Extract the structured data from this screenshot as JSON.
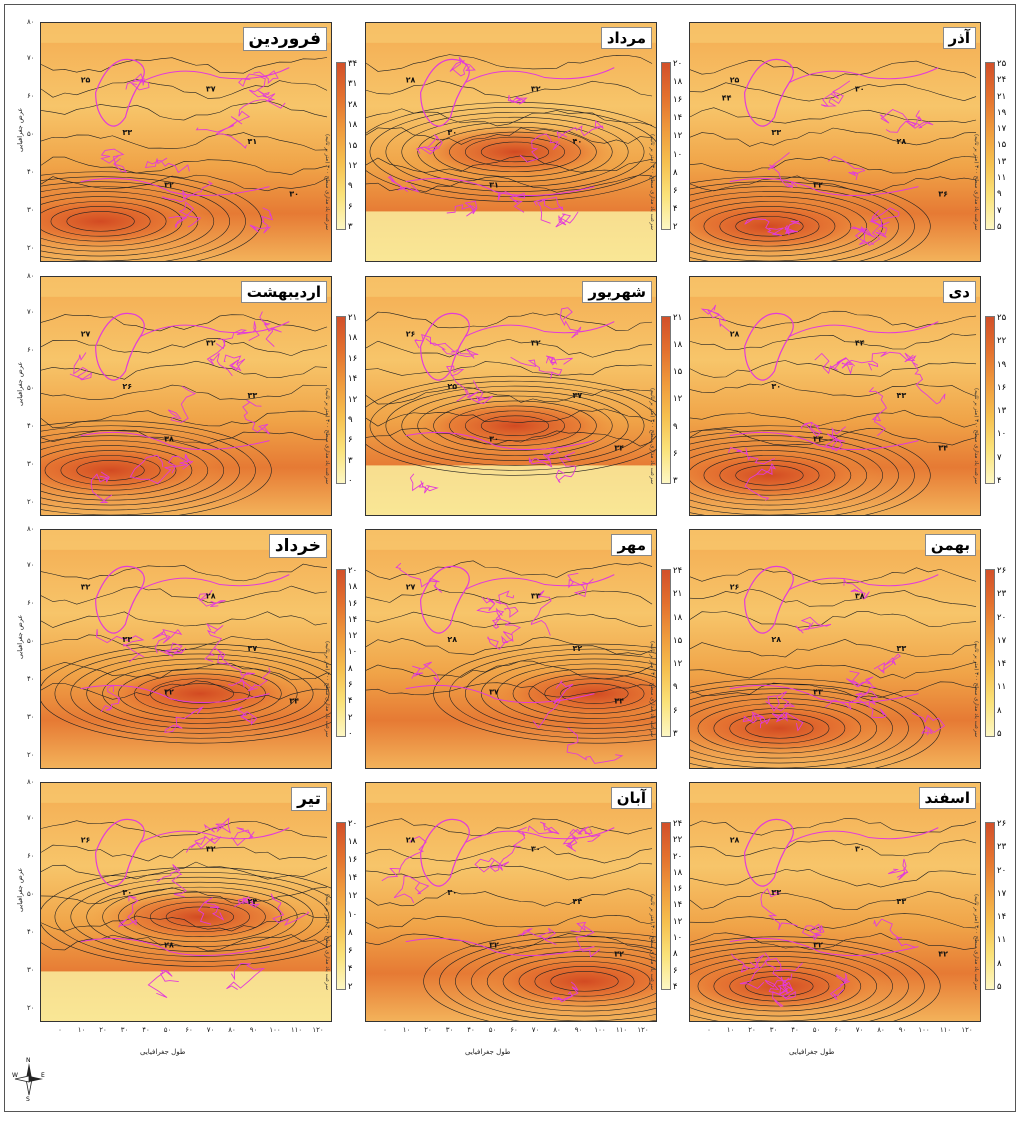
{
  "panels": [
    {
      "month": "فروردین",
      "ticks": [
        "۳۴",
        "۳۱",
        "۲۸",
        "۱۸",
        "۱۵",
        "۱۲",
        "۹",
        "۶",
        "۳"
      ],
      "labels": [
        "۲۵",
        "۳۳",
        "۳۲",
        "۳۷",
        "۳۱",
        "۳۰"
      ]
    },
    {
      "month": "مرداد",
      "ticks": [
        "۲۰",
        "۱۸",
        "۱۶",
        "۱۴",
        "۱۲",
        "۱۰",
        "۸",
        "۶",
        "۴",
        "۲"
      ],
      "labels": [
        "۲۸",
        "۳۰",
        "۳۱",
        "۳۲",
        "۴۰"
      ]
    },
    {
      "month": "آذر",
      "ticks": [
        "۲۵",
        "۲۴",
        "۲۱",
        "۱۹",
        "۱۷",
        "۱۵",
        "۱۳",
        "۱۱",
        "۹",
        "۷",
        "۵"
      ],
      "labels": [
        "۲۵",
        "۳۳",
        "۳۲",
        "۳۰",
        "۲۸",
        "۳۶",
        "۴۴"
      ]
    },
    {
      "month": "اردیبهشت",
      "ticks": [
        "۲۱",
        "۱۸",
        "۱۶",
        "۱۴",
        "۱۲",
        "۹",
        "۶",
        "۳",
        "۰"
      ],
      "labels": [
        "۲۷",
        "۲۶",
        "۳۸",
        "۳۲",
        "۳۳"
      ]
    },
    {
      "month": "شهریور",
      "ticks": [
        "۲۱",
        "۱۸",
        "۱۵",
        "۱۲",
        "۹",
        "۶",
        "۳"
      ],
      "labels": [
        "۲۶",
        "۲۵",
        "۳۰",
        "۳۲",
        "۳۷",
        "۳۴"
      ]
    },
    {
      "month": "دی",
      "ticks": [
        "۲۵",
        "۲۲",
        "۱۹",
        "۱۶",
        "۱۳",
        "۱۰",
        "۷",
        "۴"
      ],
      "labels": [
        "۲۸",
        "۳۰",
        "۴۳",
        "۴۴",
        "۴۳",
        "۳۴"
      ]
    },
    {
      "month": "خرداد",
      "ticks": [
        "۲۰",
        "۱۸",
        "۱۶",
        "۱۴",
        "۱۲",
        "۱۰",
        "۸",
        "۶",
        "۴",
        "۲",
        "۰"
      ],
      "labels": [
        "۳۲",
        "۳۳",
        "۳۲",
        "۲۸",
        "۳۷",
        "۳۴"
      ]
    },
    {
      "month": "مهر",
      "ticks": [
        "۲۴",
        "۲۱",
        "۱۸",
        "۱۵",
        "۱۲",
        "۹",
        "۶",
        "۳"
      ],
      "labels": [
        "۲۷",
        "۲۸",
        "۳۷",
        "۳۳",
        "۳۲",
        "۳۴"
      ]
    },
    {
      "month": "بهمن",
      "ticks": [
        "۲۶",
        "۲۳",
        "۲۰",
        "۱۷",
        "۱۴",
        "۱۱",
        "۸",
        "۵"
      ],
      "labels": [
        "۲۶",
        "۲۸",
        "۴۳",
        "۳۸",
        "۳۳"
      ]
    },
    {
      "month": "تیر",
      "ticks": [
        "۲۰",
        "۱۸",
        "۱۶",
        "۱۴",
        "۱۲",
        "۱۰",
        "۸",
        "۶",
        "۴",
        "۲"
      ],
      "labels": [
        "۲۶",
        "۳۰",
        "۲۸",
        "۳۲",
        "۲۴"
      ]
    },
    {
      "month": "آبان",
      "ticks": [
        "۲۴",
        "۲۲",
        "۲۰",
        "۱۸",
        "۱۶",
        "۱۴",
        "۱۲",
        "۱۰",
        "۸",
        "۶",
        "۴"
      ],
      "labels": [
        "۲۸",
        "۳۰",
        "۳۲",
        "۳۰",
        "۴۴",
        "۳۲"
      ]
    },
    {
      "month": "اسفند",
      "ticks": [
        "۲۶",
        "۲۳",
        "۲۰",
        "۱۷",
        "۱۴",
        "۱۱",
        "۸",
        "۵"
      ],
      "labels": [
        "۲۸",
        "۳۳",
        "۳۲",
        "۳۰",
        "۴۳",
        "۴۲"
      ]
    }
  ],
  "y_ticks": [
    "۸۰",
    "۷۰",
    "۶۰",
    "۵۰",
    "۴۰",
    "۳۰",
    "۲۰"
  ],
  "x_ticks": [
    "۰",
    "۱۰",
    "۲۰",
    "۳۰",
    "۴۰",
    "۵۰",
    "۶۰",
    "۷۰",
    "۸۰",
    "۹۰",
    "۱۰۰",
    "۱۱۰",
    "۱۲۰"
  ],
  "y_axis_title": "عرض جغرافیایی",
  "x_axis_title": "طول جغرافیایی",
  "colorbar_unit": "(متر بر ثانیه) سرعت باد مداری سطح ۳۰۰",
  "north_arrow": {
    "n": "N",
    "s": "S",
    "e": "E",
    "w": "W"
  },
  "colors": {
    "contour": "#222222",
    "borders": "#e23bd9",
    "high": "#d2502a",
    "low": "#fdf7c4"
  }
}
